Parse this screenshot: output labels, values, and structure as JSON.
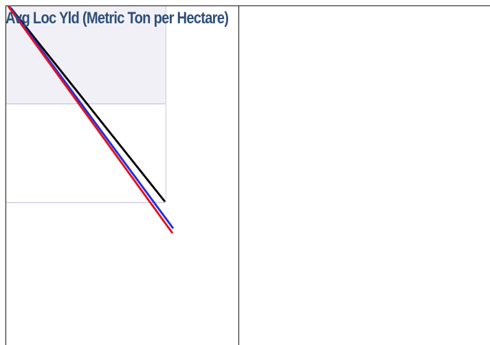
{
  "panel": {
    "title": "Avg Loc Yld (Metric Ton per Hectare)"
  },
  "colors": {
    "title": "#2f4f7a",
    "band_light": "#f0f0f6",
    "gridline": "#b5bfd9",
    "series_black": "#000000",
    "series_blue": "#1f2fe0",
    "series_red": "#e3111f"
  }
}
